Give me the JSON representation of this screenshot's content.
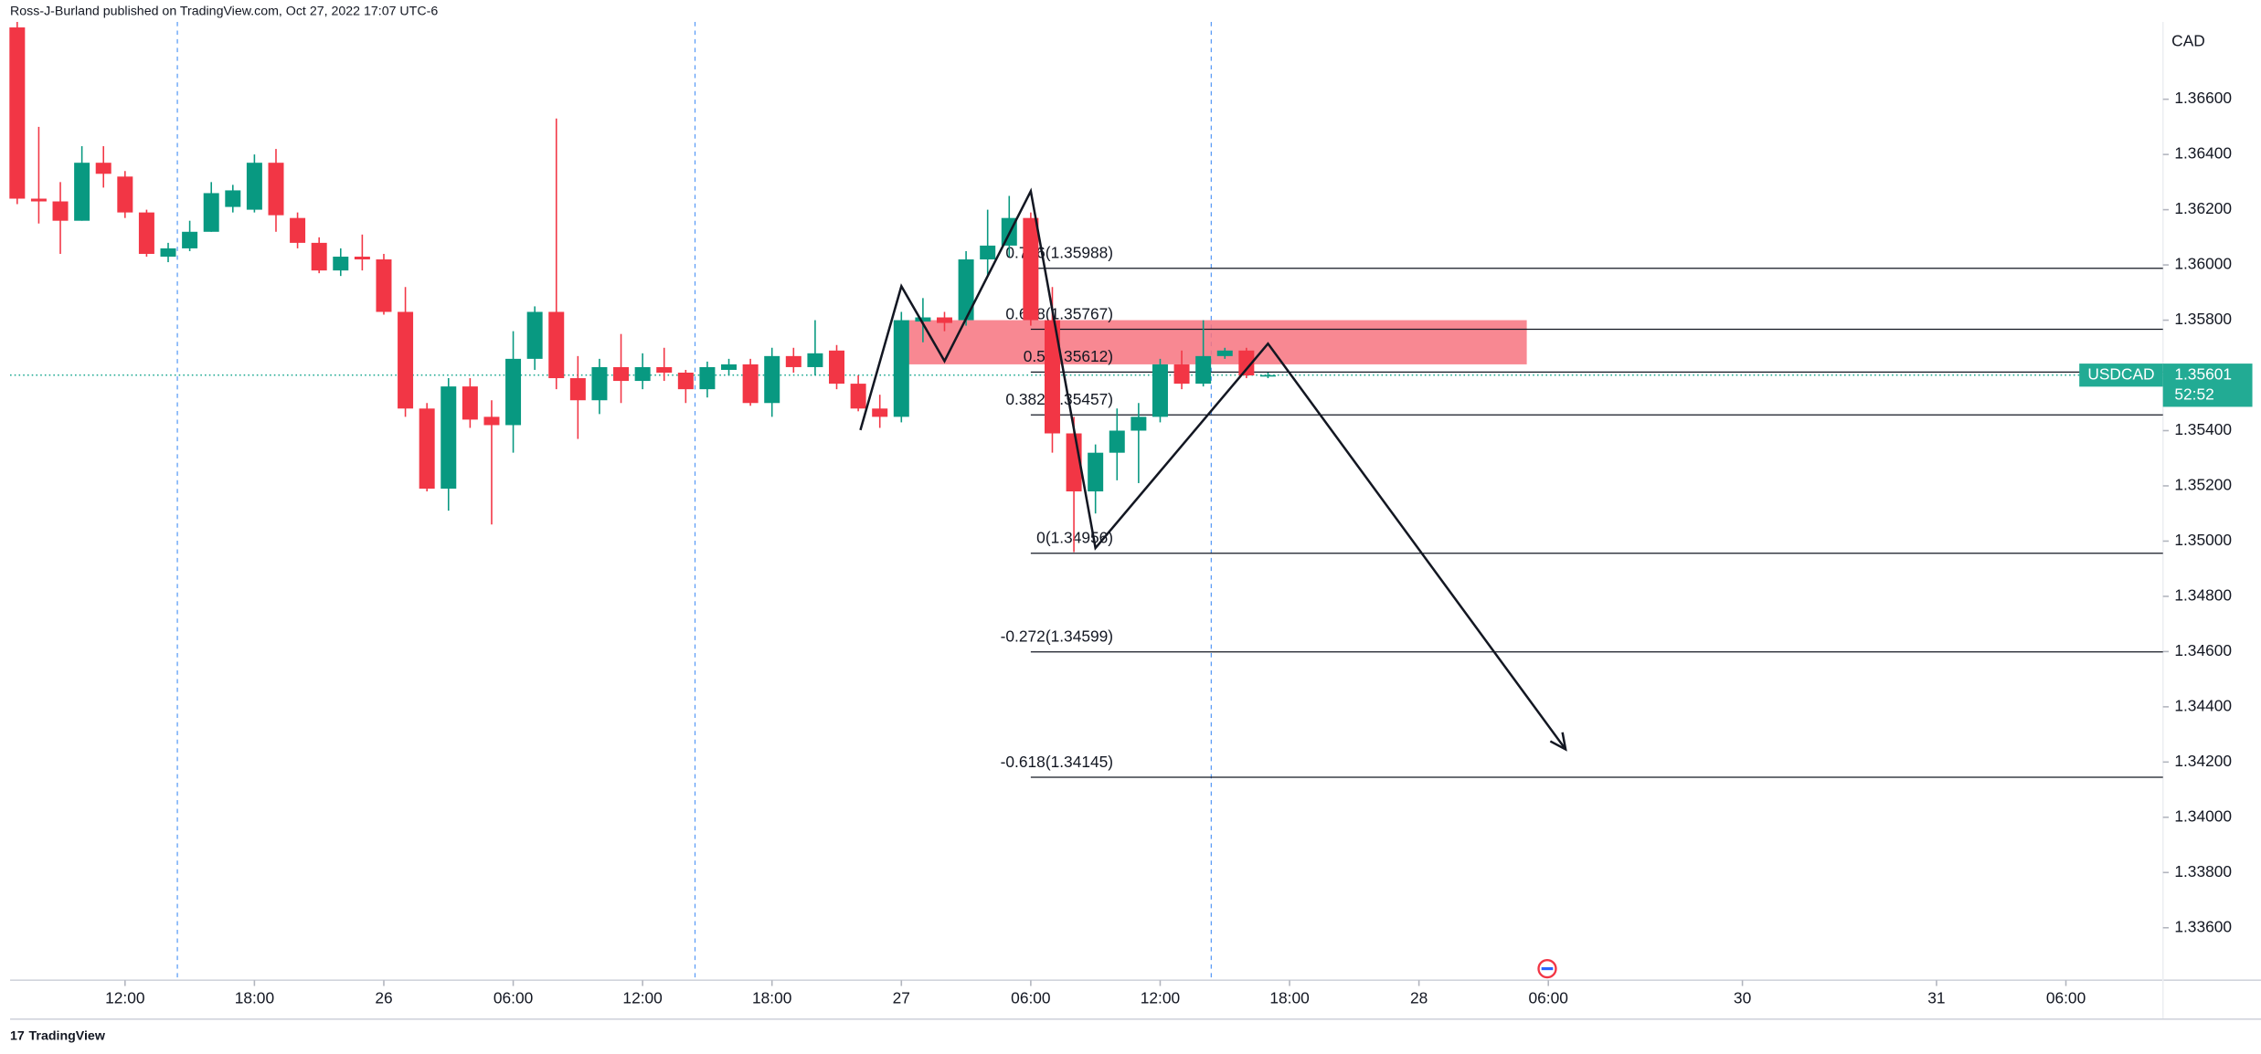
{
  "header": "Ross-J-Burland published on TradingView.com, Oct 27, 2022 17:07 UTC-6",
  "footer": "TradingView",
  "chart_data": {
    "type": "candlestick",
    "y_unit": "CAD",
    "symbol": "USDCAD",
    "last_price": {
      "value": 1.35601,
      "label": "1.35601"
    },
    "countdown": "52:52",
    "up_color": "#089981",
    "down_color": "#f23645",
    "xlim": [
      -0.33,
      99.5
    ],
    "ylim": [
      1.3341,
      1.3688
    ],
    "xticks": [
      {
        "value": 5,
        "label": "12:00"
      },
      {
        "value": 11,
        "label": "18:00"
      },
      {
        "value": 17,
        "label": "26"
      },
      {
        "value": 23,
        "label": "06:00"
      },
      {
        "value": 29,
        "label": "12:00"
      },
      {
        "value": 35,
        "label": "18:00"
      },
      {
        "value": 41,
        "label": "27"
      },
      {
        "value": 47,
        "label": "06:00"
      },
      {
        "value": 53,
        "label": "12:00"
      },
      {
        "value": 59,
        "label": "18:00"
      },
      {
        "value": 65,
        "label": "28"
      },
      {
        "value": 71,
        "label": "06:00"
      },
      {
        "value": 80,
        "label": "30"
      },
      {
        "value": 89,
        "label": "31"
      },
      {
        "value": 95,
        "label": "06:00"
      }
    ],
    "yticks": [
      {
        "value": 1.366,
        "label": "1.36600"
      },
      {
        "value": 1.364,
        "label": "1.36400"
      },
      {
        "value": 1.362,
        "label": "1.36200"
      },
      {
        "value": 1.36,
        "label": "1.36000"
      },
      {
        "value": 1.358,
        "label": "1.35800"
      },
      {
        "value": 1.356,
        "label": "1.35600"
      },
      {
        "value": 1.354,
        "label": "1.35400"
      },
      {
        "value": 1.352,
        "label": "1.35200"
      },
      {
        "value": 1.35,
        "label": "1.35000"
      },
      {
        "value": 1.348,
        "label": "1.34800"
      },
      {
        "value": 1.346,
        "label": "1.34600"
      },
      {
        "value": 1.344,
        "label": "1.34400"
      },
      {
        "value": 1.342,
        "label": "1.34200"
      },
      {
        "value": 1.34,
        "label": "1.34000"
      },
      {
        "value": 1.338,
        "label": "1.33800"
      },
      {
        "value": 1.336,
        "label": "1.33600"
      }
    ],
    "x": [
      0,
      1,
      2,
      3,
      4,
      5,
      6,
      7,
      8,
      9,
      10,
      11,
      12,
      13,
      14,
      15,
      16,
      17,
      18,
      19,
      20,
      21,
      22,
      23,
      24,
      25,
      26,
      27,
      28,
      29,
      30,
      31,
      32,
      33,
      34,
      35,
      36,
      37,
      38,
      39,
      40,
      41,
      42,
      43,
      44,
      45,
      46,
      47,
      48,
      49,
      50,
      51,
      52,
      53,
      54,
      55,
      56,
      57,
      58
    ],
    "open": [
      1.3686,
      1.3624,
      1.3623,
      1.3616,
      1.3637,
      1.3632,
      1.3619,
      1.3603,
      1.3606,
      1.3612,
      1.3621,
      1.362,
      1.3637,
      1.3617,
      1.3608,
      1.3598,
      1.3603,
      1.3602,
      1.3583,
      1.3548,
      1.3519,
      1.3556,
      1.3545,
      1.3542,
      1.3566,
      1.3583,
      1.3559,
      1.3551,
      1.3563,
      1.3558,
      1.3563,
      1.3561,
      1.3555,
      1.3562,
      1.3564,
      1.355,
      1.3567,
      1.3563,
      1.3569,
      1.3557,
      1.3548,
      1.3545,
      1.35795,
      1.3581,
      1.358,
      1.3602,
      1.3607,
      1.3617,
      1.358,
      1.3539,
      1.3518,
      1.3532,
      1.354,
      1.3545,
      1.3564,
      1.3557,
      1.3567,
      1.3569,
      1.356
    ],
    "high": [
      1.3688,
      1.365,
      1.363,
      1.3643,
      1.3643,
      1.3634,
      1.362,
      1.3608,
      1.3616,
      1.363,
      1.3629,
      1.364,
      1.3642,
      1.3619,
      1.361,
      1.3606,
      1.3611,
      1.3604,
      1.3592,
      1.355,
      1.3559,
      1.3559,
      1.3551,
      1.3576,
      1.3585,
      1.3653,
      1.3567,
      1.3566,
      1.3575,
      1.3568,
      1.357,
      1.3562,
      1.3565,
      1.3566,
      1.3566,
      1.357,
      1.357,
      1.358,
      1.3571,
      1.356,
      1.3553,
      1.3583,
      1.3588,
      1.3583,
      1.3605,
      1.362,
      1.3625,
      1.3619,
      1.3592,
      1.3545,
      1.3535,
      1.3548,
      1.355,
      1.3566,
      1.3569,
      1.358,
      1.357,
      1.357,
      1.3561
    ],
    "low": [
      1.3622,
      1.3615,
      1.3604,
      1.3616,
      1.3628,
      1.3617,
      1.3603,
      1.3601,
      1.3605,
      1.3612,
      1.3619,
      1.3619,
      1.3612,
      1.3606,
      1.3597,
      1.3596,
      1.3598,
      1.3582,
      1.3545,
      1.3518,
      1.3511,
      1.3541,
      1.3506,
      1.3532,
      1.3562,
      1.3555,
      1.3537,
      1.3546,
      1.355,
      1.3555,
      1.3558,
      1.355,
      1.3552,
      1.356,
      1.3549,
      1.3545,
      1.3561,
      1.356,
      1.3555,
      1.3547,
      1.3541,
      1.3543,
      1.3572,
      1.3576,
      1.3578,
      1.3596,
      1.3603,
      1.3578,
      1.3532,
      1.3496,
      1.351,
      1.3522,
      1.3521,
      1.3543,
      1.3555,
      1.3556,
      1.3566,
      1.3559,
      1.3559
    ],
    "close": [
      1.3624,
      1.3623,
      1.3616,
      1.3637,
      1.3633,
      1.3619,
      1.3604,
      1.3606,
      1.3612,
      1.3626,
      1.3627,
      1.3637,
      1.3618,
      1.3608,
      1.3598,
      1.3603,
      1.3602,
      1.3583,
      1.3548,
      1.3519,
      1.3556,
      1.3544,
      1.3542,
      1.3566,
      1.3583,
      1.3559,
      1.3551,
      1.3563,
      1.3558,
      1.3563,
      1.3561,
      1.3555,
      1.3563,
      1.3564,
      1.355,
      1.3567,
      1.3563,
      1.3568,
      1.3557,
      1.3548,
      1.3545,
      1.358,
      1.3581,
      1.3579,
      1.3602,
      1.3607,
      1.3617,
      1.358,
      1.3539,
      1.3518,
      1.3532,
      1.354,
      1.3545,
      1.3564,
      1.3557,
      1.3567,
      1.3569,
      1.356,
      1.35601
    ],
    "fib_levels": [
      {
        "value": 1.35988,
        "label": "0.786(1.35988)"
      },
      {
        "value": 1.35767,
        "label": "0.618(1.35767)"
      },
      {
        "value": 1.35612,
        "label": "0.5(1.35612)"
      },
      {
        "value": 1.35457,
        "label": "0.382(1.35457)"
      },
      {
        "value": 1.34956,
        "label": "0(1.34956)"
      },
      {
        "value": 1.34599,
        "label": "-0.272(1.34599)"
      },
      {
        "value": 1.34145,
        "label": "-0.618(1.34145)"
      }
    ],
    "fib_start_x": 47,
    "zone": {
      "x": [
        41.3,
        70
      ],
      "y": [
        1.3564,
        1.358
      ],
      "color": "#f7737f"
    },
    "drawing": {
      "x": [
        39.1,
        41,
        43,
        47,
        50,
        58,
        71.8
      ],
      "y": [
        1.35402,
        1.35923,
        1.35652,
        1.36267,
        1.34975,
        1.35715,
        1.34246
      ]
    },
    "price_color": "#22ab94"
  }
}
